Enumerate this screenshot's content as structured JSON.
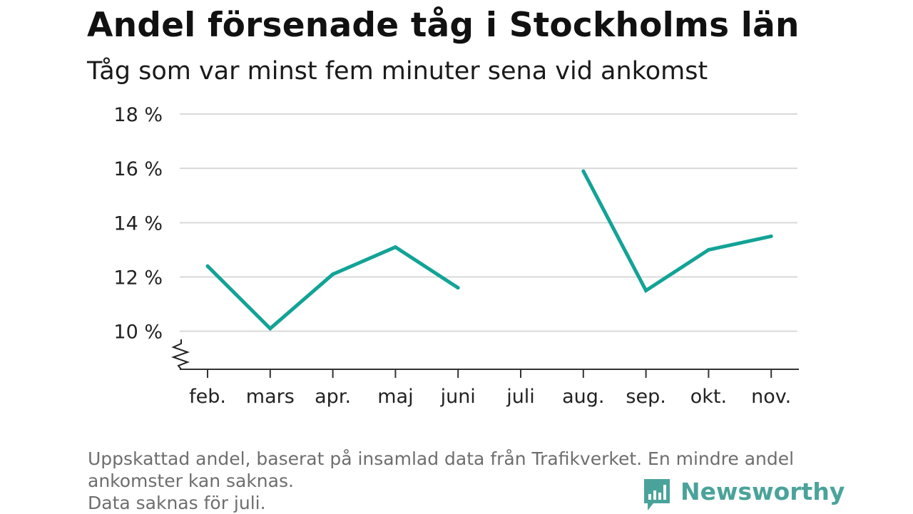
{
  "title": "Andel försenade tåg i Stockholms län",
  "subtitle": "Tåg som var minst fem minuter sena vid ankomst",
  "footnote": {
    "line1": "Uppskattad andel, baserat på insamlad data från Trafikverket. En mindre andel",
    "line2": "ankomster kan saknas.",
    "line3": "Data saknas för juli."
  },
  "logo": {
    "text": "Newsworthy",
    "icon": "newsworthy-chart-icon",
    "color": "#4aa39a"
  },
  "chart_data": {
    "type": "line",
    "categories": [
      "feb.",
      "mars",
      "apr.",
      "maj",
      "juni",
      "juli",
      "aug.",
      "sep.",
      "okt.",
      "nov."
    ],
    "series": [
      {
        "values": [
          12.4,
          10.1,
          12.1,
          13.1,
          11.6,
          null,
          15.9,
          11.5,
          13.0,
          13.5
        ],
        "color": "#12a396"
      }
    ],
    "y_ticks": [
      10,
      12,
      14,
      16,
      18
    ],
    "y_tick_labels": [
      "10 %",
      "12 %",
      "14 %",
      "16 %",
      "18 %"
    ],
    "ylim": [
      8.6,
      18
    ],
    "y_axis_break": true,
    "xlabel": "",
    "ylabel": "",
    "grid": true,
    "legend": "none"
  }
}
